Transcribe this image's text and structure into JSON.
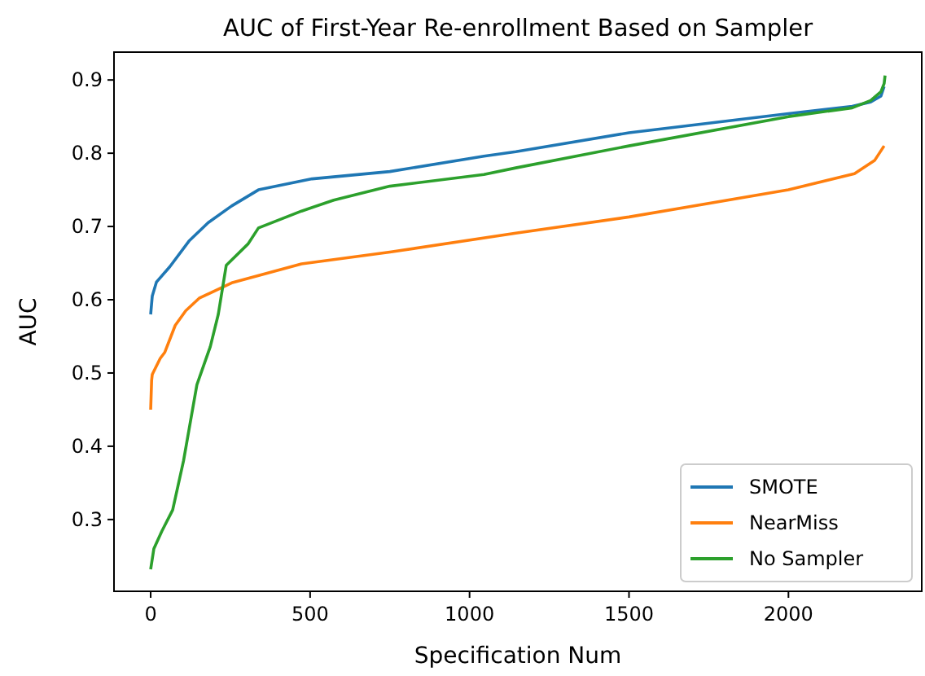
{
  "chart_data": {
    "type": "line",
    "title": "AUC of First-Year Re-enrollment Based on Sampler",
    "xlabel": "Specification Num",
    "ylabel": "AUC",
    "xlim": [
      -115,
      2418
    ],
    "ylim": [
      0.202,
      0.938
    ],
    "xticks": [
      0,
      500,
      1000,
      1500,
      2000
    ],
    "yticks": [
      0.3,
      0.4,
      0.5,
      0.6,
      0.7,
      0.8,
      0.9
    ],
    "grid": false,
    "legend": "bottom right",
    "marker": "none",
    "line_style": "solid",
    "series": [
      {
        "name": "SMOTE",
        "color": "#1f77b4",
        "x": [
          0,
          5,
          18,
          60,
          120,
          180,
          254,
          338,
          506,
          750,
          1045,
          1145,
          1500,
          2000,
          2200,
          2258,
          2290,
          2300
        ],
        "values": [
          0.58,
          0.605,
          0.624,
          0.645,
          0.68,
          0.705,
          0.728,
          0.75,
          0.765,
          0.775,
          0.796,
          0.802,
          0.828,
          0.854,
          0.864,
          0.87,
          0.878,
          0.891
        ]
      },
      {
        "name": "NearMiss",
        "color": "#ff7f0e",
        "x": [
          0,
          3,
          5,
          30,
          44,
          77,
          110,
          152,
          254,
          473,
          750,
          1145,
          1500,
          2000,
          2207,
          2270,
          2300
        ],
        "values": [
          0.45,
          0.49,
          0.498,
          0.52,
          0.528,
          0.565,
          0.585,
          0.602,
          0.623,
          0.649,
          0.665,
          0.691,
          0.713,
          0.75,
          0.772,
          0.79,
          0.81
        ]
      },
      {
        "name": "No Sampler",
        "color": "#2ca02c",
        "x": [
          0,
          10,
          35,
          69,
          103,
          145,
          187,
          212,
          237,
          305,
          338,
          473,
          574,
          750,
          1045,
          1145,
          1500,
          2000,
          2200,
          2258,
          2290,
          2300,
          2303
        ],
        "values": [
          0.232,
          0.26,
          0.284,
          0.313,
          0.38,
          0.484,
          0.536,
          0.58,
          0.647,
          0.676,
          0.698,
          0.721,
          0.736,
          0.755,
          0.771,
          0.78,
          0.81,
          0.85,
          0.862,
          0.872,
          0.884,
          0.895,
          0.906
        ]
      }
    ]
  }
}
